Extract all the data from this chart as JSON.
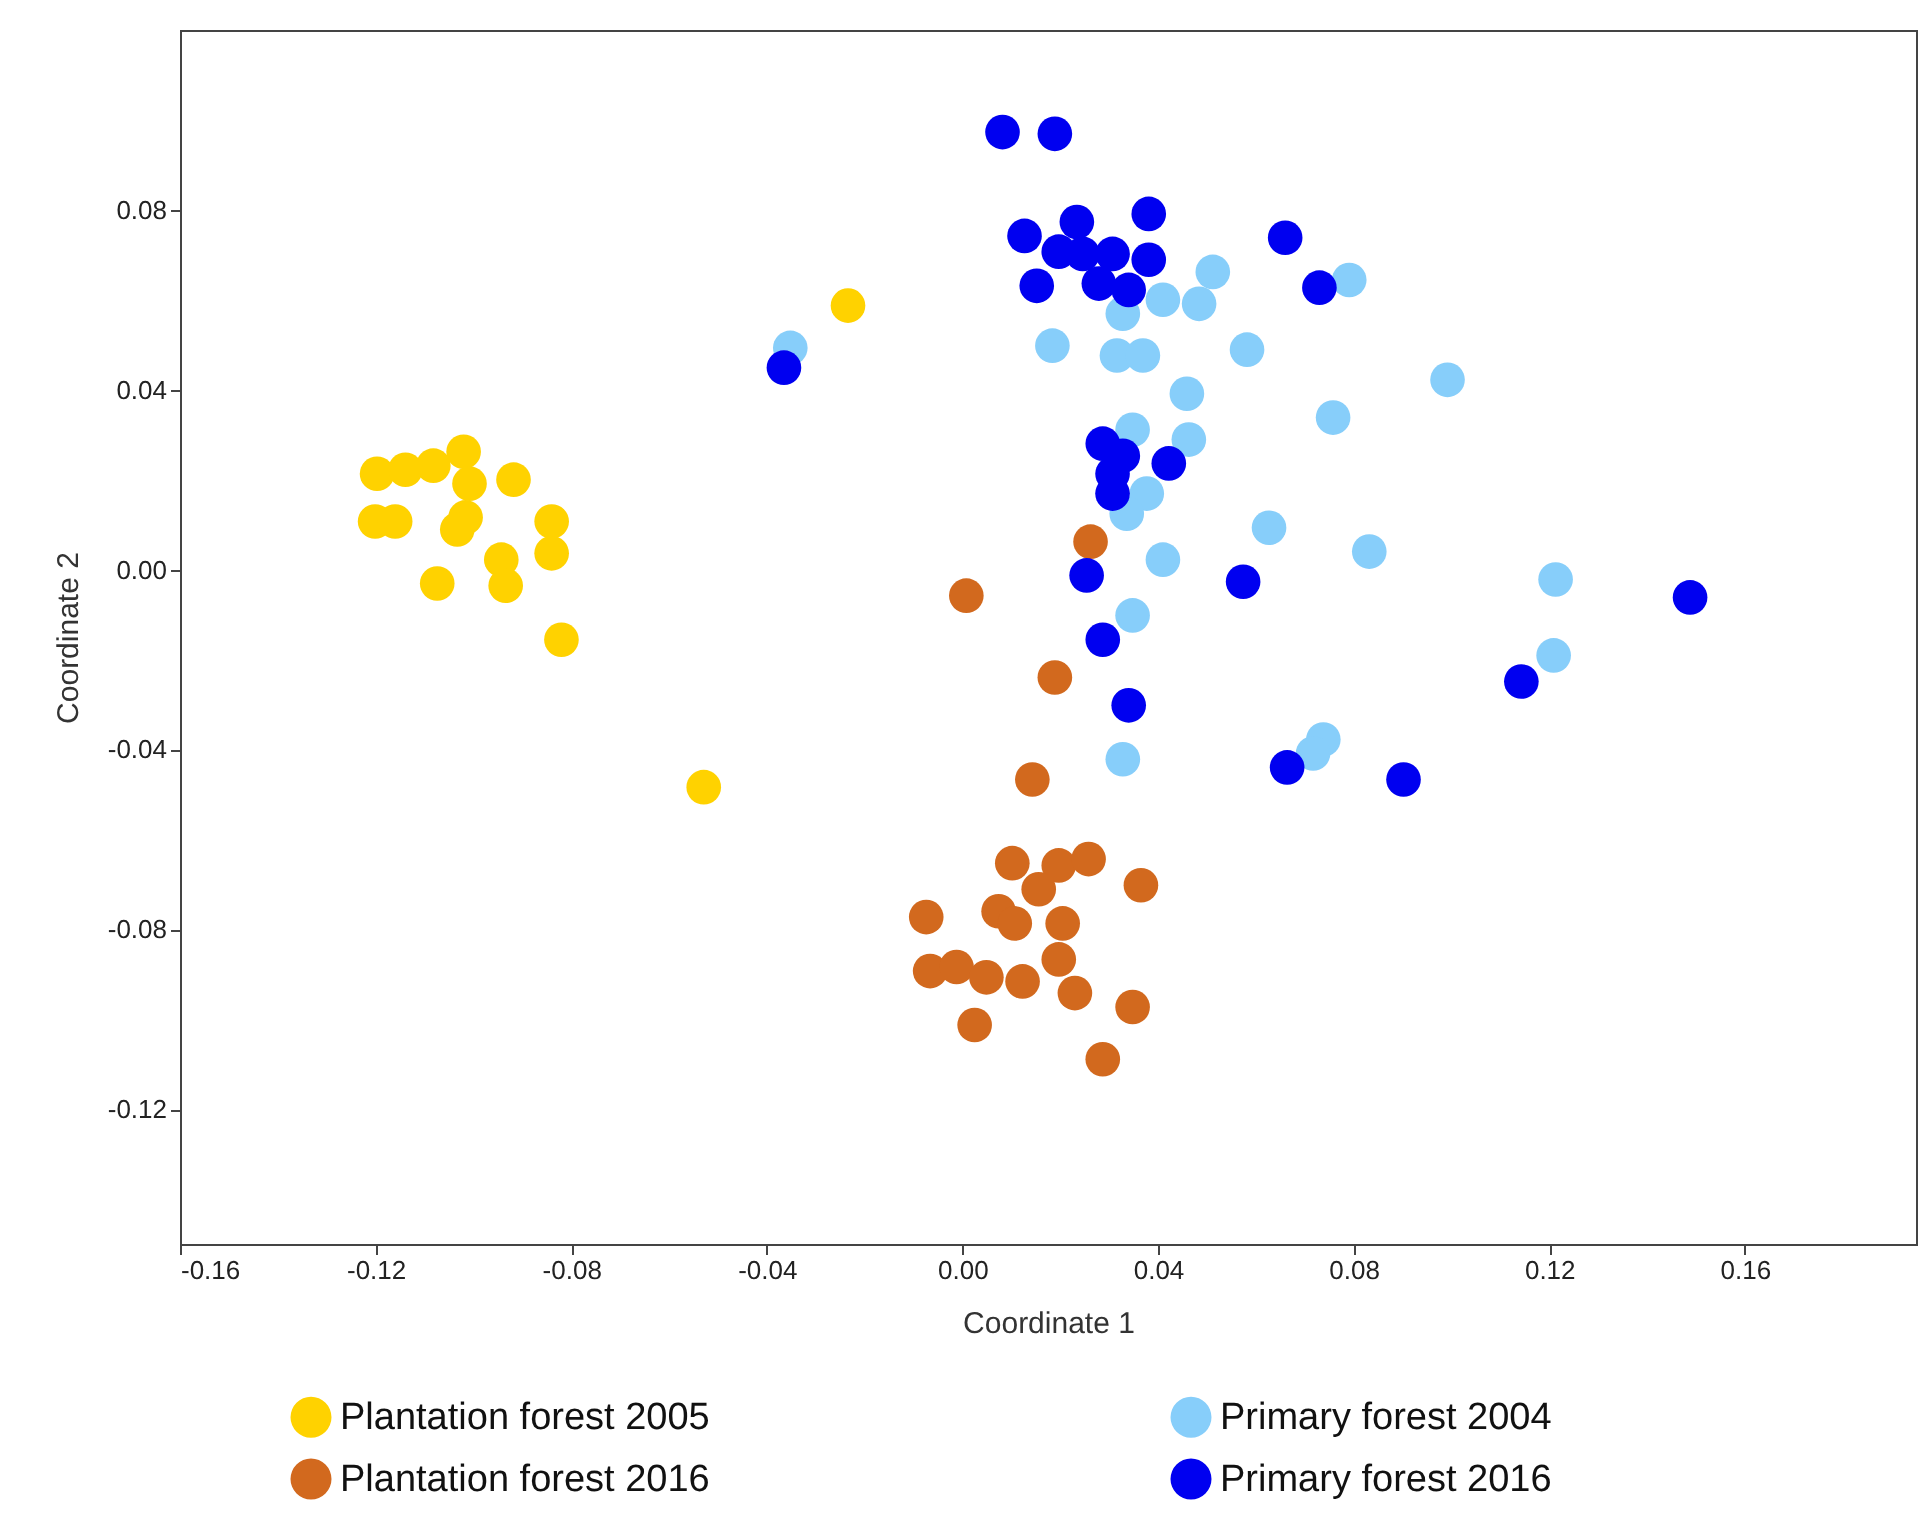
{
  "chart_data": {
    "type": "scatter",
    "xlabel": "Coordinate 1",
    "ylabel": "Coordinate 2",
    "xlim": [
      -0.16,
      0.195
    ],
    "ylim": [
      -0.15,
      0.12
    ],
    "xticks": [
      -0.16,
      -0.12,
      -0.08,
      -0.04,
      {
        "value": 0,
        "label": "0.00"
      },
      0.04,
      0.08,
      0.12,
      0.16
    ],
    "yticks": [
      -0.12,
      -0.08,
      -0.04,
      {
        "value": 0,
        "label": "0.00"
      },
      0.04,
      0.08
    ],
    "grid": false,
    "legend": "bottom",
    "marker": "circle",
    "series": [
      {
        "name": "Plantation forest 2005",
        "color": "#ffd200",
        "x": [
          -0.1197,
          -0.1139,
          -0.1082,
          -0.102,
          -0.1008,
          -0.0918,
          -0.1201,
          -0.116,
          -0.1016,
          -0.1033,
          -0.084,
          -0.084,
          -0.1074,
          -0.0943,
          -0.0934,
          -0.082,
          -0.0234,
          -0.0529
        ],
        "values": [
          0.0213,
          0.0222,
          0.0231,
          0.0262,
          0.0191,
          0.02,
          0.0107,
          0.0107,
          0.0116,
          0.0089,
          0.0107,
          0.0036,
          -0.0031,
          0.0022,
          -0.0036,
          -0.0156,
          0.0587,
          -0.0484
        ]
      },
      {
        "name": "Plantation forest 2016",
        "color": "#d2691e",
        "x": [
          0.0262,
          0.0008,
          0.0189,
          0.0143,
          0.0102,
          0.0197,
          0.0258,
          0.0365,
          -0.0074,
          0.0074,
          0.0107,
          0.0156,
          0.0205,
          -0.0066,
          -0.0012,
          0.0049,
          0.0123,
          0.0197,
          0.0025,
          0.023,
          0.0348,
          0.0287
        ],
        "values": [
          0.0062,
          -0.0058,
          -0.024,
          -0.0467,
          -0.0653,
          -0.0658,
          -0.0644,
          -0.0702,
          -0.0773,
          -0.076,
          -0.0787,
          -0.0711,
          -0.0787,
          -0.0893,
          -0.0884,
          -0.0907,
          -0.0916,
          -0.0867,
          -0.1013,
          -0.0942,
          -0.0973,
          -0.1089
        ]
      },
      {
        "name": "Primary forest 2004",
        "color": "#87cefa",
        "x": [
          -0.0352,
          0.0184,
          0.0316,
          0.0369,
          0.0582,
          0.0459,
          0.0992,
          0.0758,
          0.0348,
          0.0463,
          0.0377,
          0.0336,
          0.0627,
          0.0832,
          0.041,
          0.0348,
          0.0738,
          0.0717,
          0.0328,
          0.1213,
          0.1209,
          0.0512,
          0.041,
          0.0484,
          0.0328,
          0.0791
        ],
        "values": [
          0.0493,
          0.0498,
          0.0476,
          0.0476,
          0.0489,
          0.0391,
          0.0422,
          0.0338,
          0.0311,
          0.0289,
          0.0169,
          0.0124,
          0.0093,
          0.004,
          0.0022,
          -0.0102,
          -0.0378,
          -0.0409,
          -0.0422,
          -0.0022,
          -0.0191,
          0.0662,
          0.06,
          0.0591,
          0.0569,
          0.0644
        ]
      },
      {
        "name": "Primary forest 2016",
        "color": "#0000f0",
        "x": [
          0.0082,
          0.0189,
          0.0127,
          0.0234,
          0.0381,
          0.066,
          0.0152,
          0.0197,
          0.0307,
          0.0381,
          0.0279,
          0.034,
          0.073,
          0.0246,
          0.0287,
          0.0328,
          0.0307,
          0.0307,
          0.0422,
          0.0254,
          0.0574,
          0.0287,
          0.034,
          0.0664,
          0.0902,
          -0.0365,
          0.1143,
          0.1488
        ],
        "values": [
          0.0973,
          0.0969,
          0.0742,
          0.0773,
          0.0791,
          0.0738,
          0.0631,
          0.0707,
          0.0702,
          0.0689,
          0.0636,
          0.0622,
          0.0627,
          0.0702,
          0.028,
          0.0253,
          0.0213,
          0.0169,
          0.0236,
          -0.0013,
          -0.0027,
          -0.0156,
          -0.0302,
          -0.044,
          -0.0467,
          0.0449,
          -0.0249,
          -0.0062
        ]
      }
    ]
  }
}
